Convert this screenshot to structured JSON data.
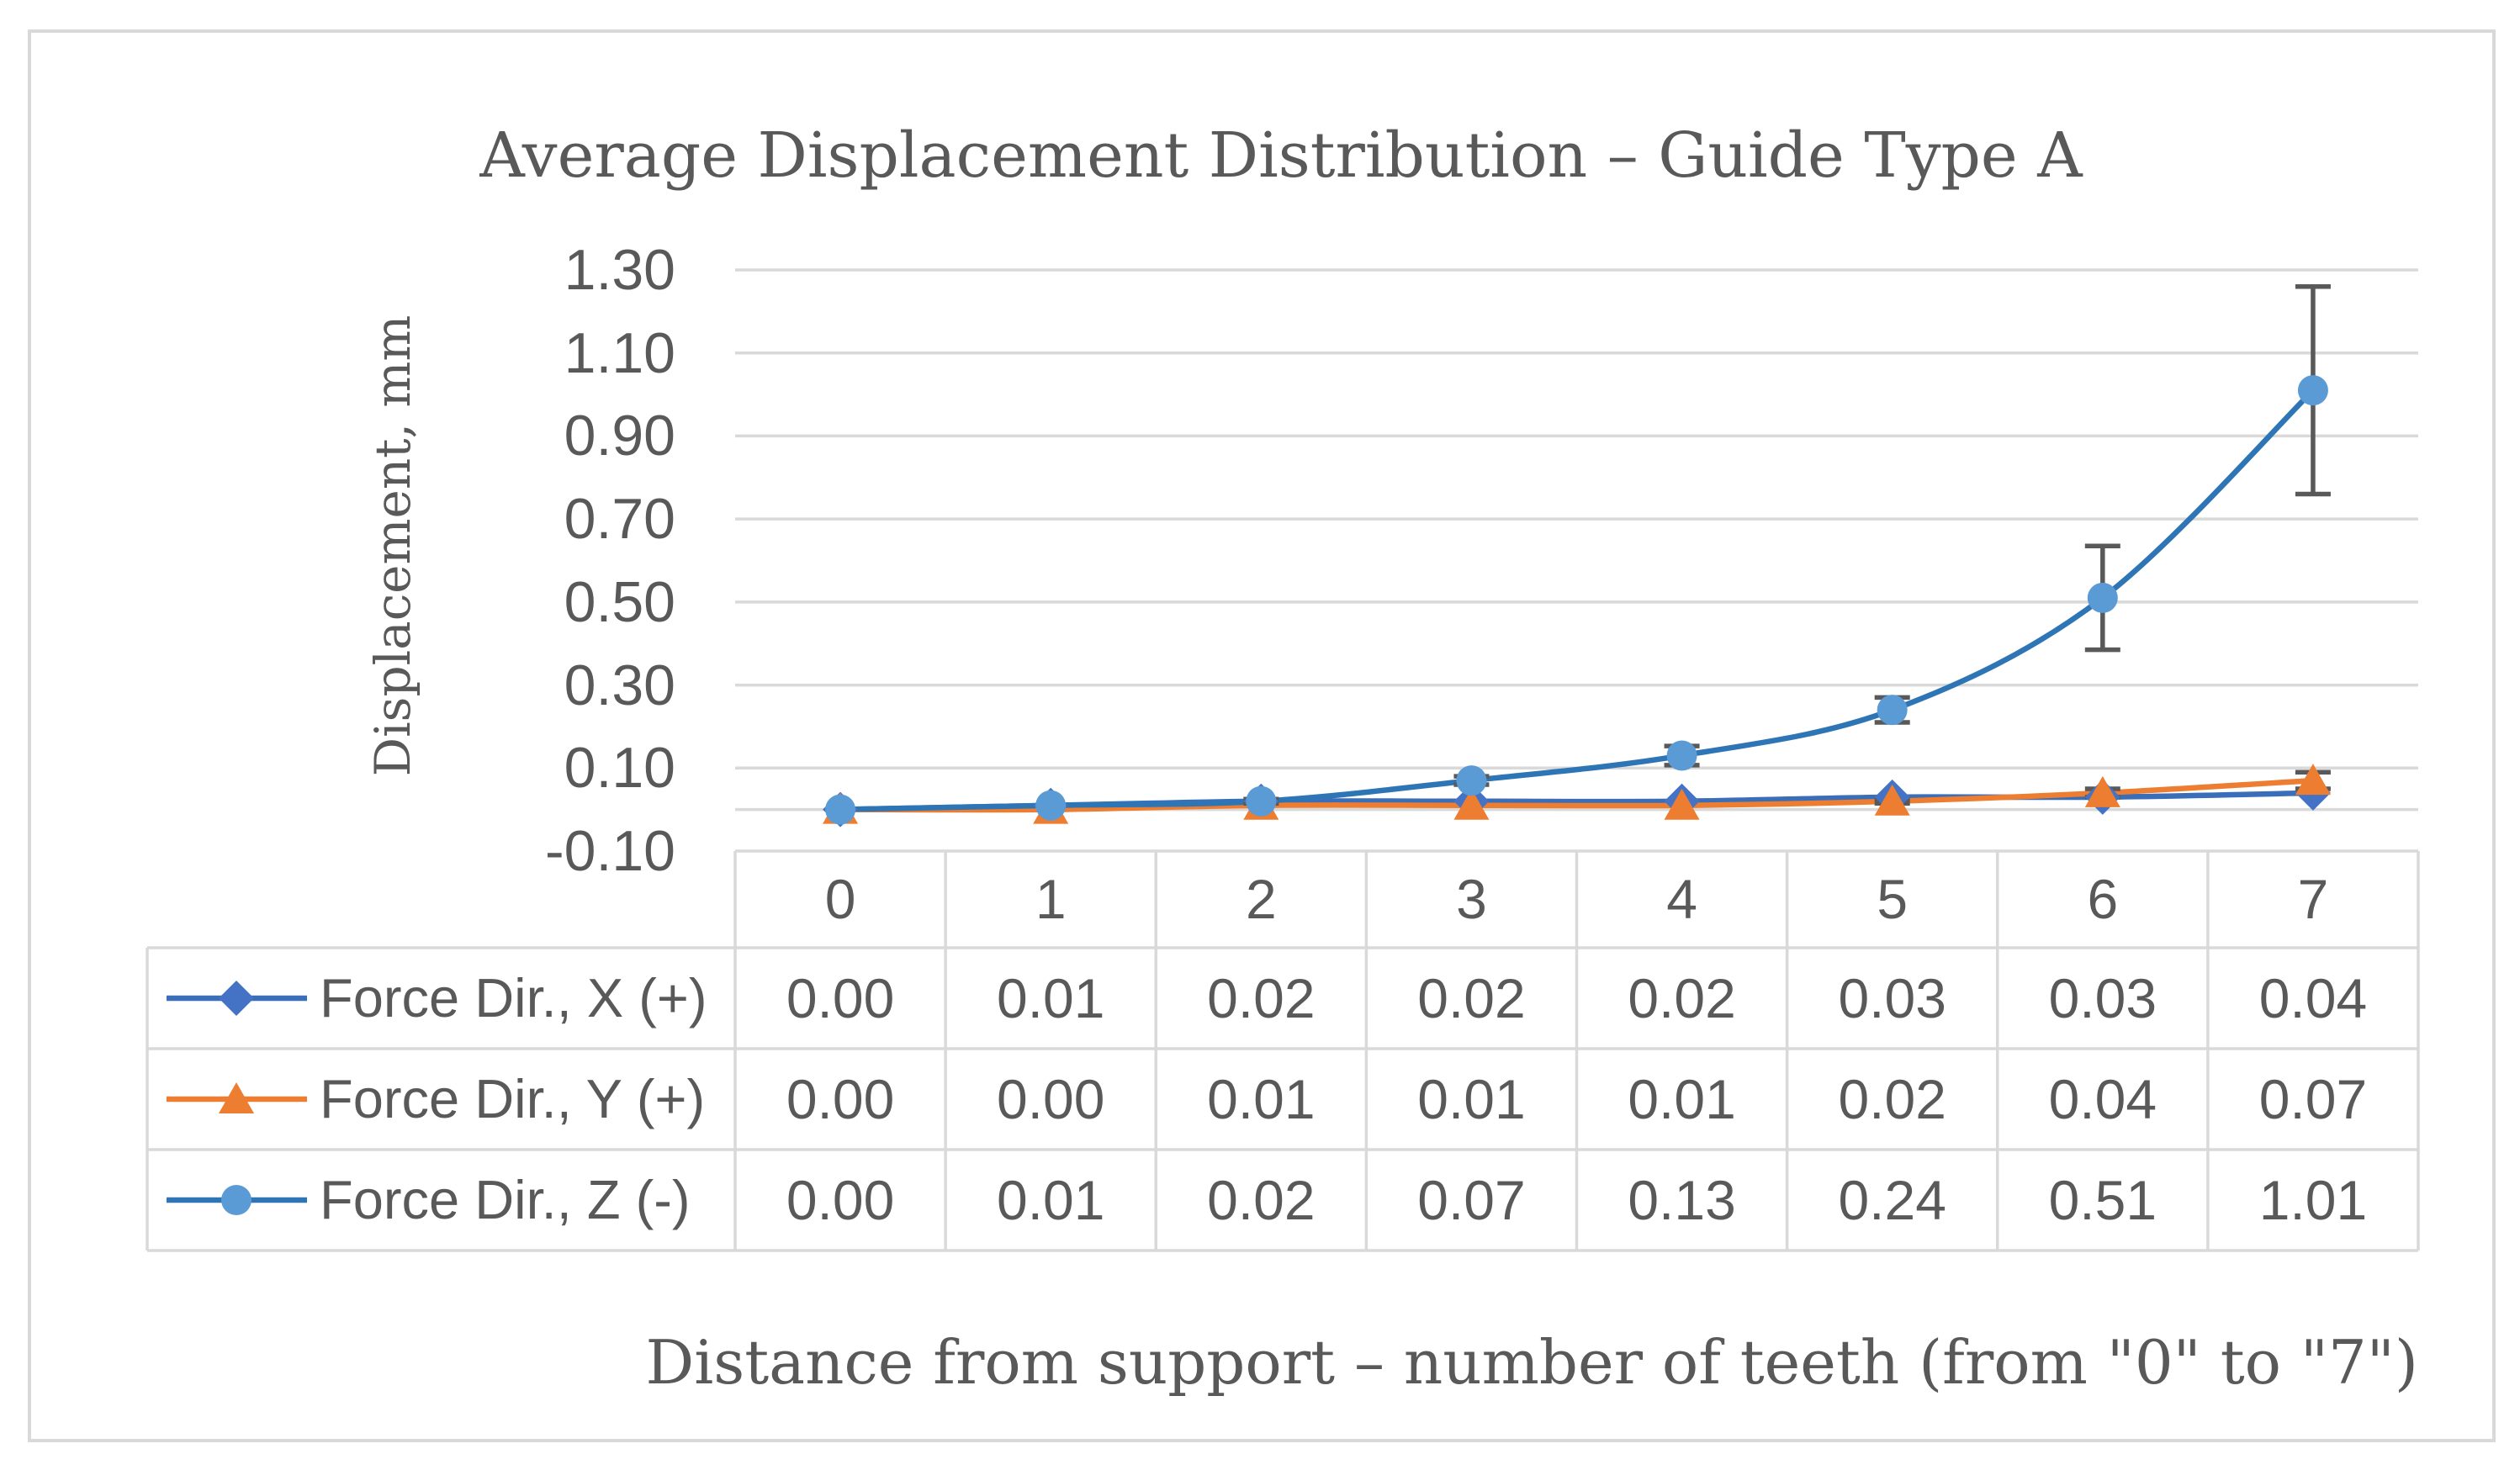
{
  "chart_data": {
    "type": "line",
    "title": "Average Displacement Distribution – Guide Type A",
    "xlabel": "Distance from support – number of teeth (from \"0\" to \"7\")",
    "ylabel": "Displacement, mm",
    "categories": [
      "0",
      "1",
      "2",
      "3",
      "4",
      "5",
      "6",
      "7"
    ],
    "ylim": [
      -0.1,
      1.3
    ],
    "y_ticks": [
      "-0.10",
      "0.10",
      "0.30",
      "0.50",
      "0.70",
      "0.90",
      "1.10",
      "1.30"
    ],
    "grid": true,
    "smooth": true,
    "data_table": true,
    "series": [
      {
        "name": "Force Dir., X (+)",
        "marker": "diamond",
        "line_color": "#3A6EB8",
        "marker_color": "#4472C4",
        "values": [
          0.0,
          0.01,
          0.02,
          0.02,
          0.02,
          0.03,
          0.03,
          0.04
        ],
        "error": [
          0,
          0,
          0,
          0,
          0,
          0,
          0,
          0
        ],
        "table_labels": [
          "0.00",
          "0.01",
          "0.02",
          "0.02",
          "0.02",
          "0.03",
          "0.03",
          "0.04"
        ]
      },
      {
        "name": "Force Dir., Y (+)",
        "marker": "triangle",
        "line_color": "#ED7D31",
        "marker_color": "#ED7D31",
        "values": [
          0.0,
          0.0,
          0.01,
          0.01,
          0.01,
          0.02,
          0.04,
          0.07
        ],
        "error": [
          0,
          0,
          0,
          0,
          0,
          0.005,
          0.01,
          0.02
        ],
        "table_labels": [
          "0.00",
          "0.00",
          "0.01",
          "0.01",
          "0.01",
          "0.02",
          "0.04",
          "0.07"
        ]
      },
      {
        "name": "Force Dir., Z (-)",
        "marker": "circle",
        "line_color": "#2E75B6",
        "marker_color": "#5B9BD5",
        "values": [
          0.0,
          0.01,
          0.02,
          0.07,
          0.13,
          0.24,
          0.51,
          1.01
        ],
        "error": [
          0,
          0,
          0.005,
          0.01,
          0.023,
          0.03,
          0.125,
          0.25
        ],
        "table_labels": [
          "0.00",
          "0.01",
          "0.02",
          "0.07",
          "0.13",
          "0.24",
          "0.51",
          "1.01"
        ]
      }
    ],
    "colors": {
      "text": "#595959",
      "grid": "#D9D9D9",
      "error_bar": "#595959",
      "background": "#FFFFFF"
    }
  }
}
